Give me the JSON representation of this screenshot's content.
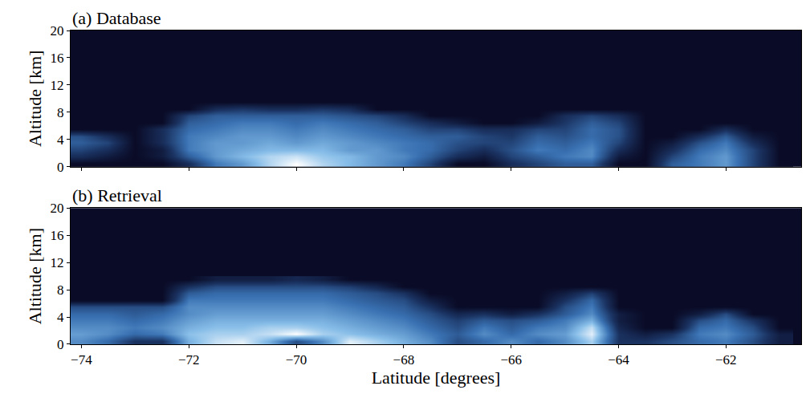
{
  "chart_data": [
    {
      "type": "heatmap",
      "title": "(a) Database",
      "ylabel": "Altitude [km]",
      "tick_labels": "y",
      "x": [
        -74,
        -73.5,
        -73,
        -72.5,
        -72,
        -71.5,
        -71,
        -70.5,
        -70,
        -69.5,
        -69,
        -68.5,
        -68,
        -67.5,
        -67,
        -66.5,
        -66,
        -65.5,
        -65,
        -64.5,
        -64,
        -63.5,
        -63,
        -62.5,
        -62,
        -61.5,
        -61
      ],
      "y": [
        0.5,
        1.5,
        2.5,
        3.5,
        4.5,
        5.5,
        6.5,
        7.5,
        8.5,
        9.5
      ],
      "z": [
        [
          0,
          0,
          0,
          0,
          0.2,
          0.5,
          0.6,
          0.8,
          0.95,
          0.8,
          0.7,
          0.6,
          0.5,
          0.3,
          0,
          0,
          0.2,
          0.3,
          0.4,
          0.4,
          0,
          0,
          0.4,
          0.5,
          0.6,
          0.3,
          0
        ],
        [
          0.2,
          0.1,
          0,
          0.1,
          0.4,
          0.6,
          0.7,
          0.8,
          0.85,
          0.75,
          0.7,
          0.6,
          0.55,
          0.4,
          0.2,
          0.1,
          0.3,
          0.4,
          0.5,
          0.55,
          0.1,
          0,
          0.3,
          0.5,
          0.6,
          0.3,
          0
        ],
        [
          0.3,
          0.2,
          0,
          0.1,
          0.5,
          0.6,
          0.65,
          0.7,
          0.7,
          0.7,
          0.6,
          0.6,
          0.5,
          0.45,
          0.3,
          0.2,
          0.35,
          0.5,
          0.45,
          0.55,
          0.2,
          0,
          0.2,
          0.45,
          0.55,
          0.3,
          0
        ],
        [
          0.4,
          0.3,
          0,
          0.2,
          0.5,
          0.6,
          0.6,
          0.65,
          0.6,
          0.65,
          0.6,
          0.55,
          0.5,
          0.45,
          0.35,
          0.3,
          0.3,
          0.45,
          0.4,
          0.5,
          0.3,
          0,
          0.1,
          0.35,
          0.5,
          0.2,
          0
        ],
        [
          0.35,
          0.2,
          0,
          0.2,
          0.5,
          0.55,
          0.6,
          0.6,
          0.55,
          0.6,
          0.55,
          0.5,
          0.45,
          0.4,
          0.4,
          0.3,
          0.25,
          0.4,
          0.35,
          0.45,
          0.35,
          0,
          0,
          0.2,
          0.4,
          0.1,
          0
        ],
        [
          0,
          0,
          0,
          0.2,
          0.45,
          0.5,
          0.55,
          0.55,
          0.5,
          0.55,
          0.5,
          0.45,
          0.4,
          0.3,
          0.3,
          0.2,
          0.2,
          0.3,
          0.3,
          0.45,
          0.35,
          0,
          0,
          0,
          0.2,
          0,
          0
        ],
        [
          0,
          0,
          0,
          0,
          0.4,
          0.45,
          0.5,
          0.5,
          0.45,
          0.5,
          0.45,
          0.4,
          0.3,
          0.2,
          0.1,
          0,
          0,
          0.1,
          0.25,
          0.4,
          0.3,
          0,
          0,
          0,
          0,
          0,
          0
        ],
        [
          0,
          0,
          0,
          0,
          0.3,
          0.4,
          0.4,
          0.4,
          0.4,
          0.4,
          0.35,
          0.3,
          0.2,
          0,
          0,
          0,
          0,
          0,
          0.2,
          0.3,
          0.2,
          0,
          0,
          0,
          0,
          0,
          0
        ],
        [
          0,
          0,
          0,
          0,
          0,
          0.2,
          0.25,
          0.2,
          0.2,
          0.25,
          0.2,
          0,
          0,
          0,
          0,
          0,
          0,
          0,
          0,
          0,
          0,
          0,
          0,
          0,
          0,
          0,
          0
        ],
        [
          0,
          0,
          0,
          0,
          0,
          0,
          0,
          0,
          0,
          0,
          0,
          0,
          0,
          0,
          0,
          0,
          0,
          0,
          0,
          0,
          0,
          0,
          0,
          0,
          0,
          0,
          0
        ]
      ],
      "xlim": [
        -74.2,
        -60.6
      ],
      "xticks": [
        {
          "value": -74,
          "label": "−74"
        },
        {
          "value": -72,
          "label": "−72"
        },
        {
          "value": -70,
          "label": "−70"
        },
        {
          "value": -68,
          "label": "−68"
        },
        {
          "value": -66,
          "label": "−66"
        },
        {
          "value": -64,
          "label": "−64"
        },
        {
          "value": -62,
          "label": "−62"
        }
      ],
      "ylim": [
        0,
        20
      ],
      "yticks": [
        0,
        4,
        8,
        12,
        16,
        20
      ]
    },
    {
      "type": "heatmap",
      "title": "(b) Retrieval",
      "xlabel": "Latitude [degrees]",
      "ylabel": "Altitude [km]",
      "x": [
        -74,
        -73.5,
        -73,
        -72.5,
        -72,
        -71.5,
        -71,
        -70.5,
        -70,
        -69.5,
        -69,
        -68.5,
        -68,
        -67.5,
        -67,
        -66.5,
        -66,
        -65.5,
        -65,
        -64.5,
        -64,
        -63.5,
        -63,
        -62.5,
        -62,
        -61.5,
        -61
      ],
      "y": [
        0.5,
        1.5,
        2.5,
        3.5,
        4.5,
        5.5,
        6.5,
        7.5,
        8.5,
        9.5
      ],
      "z": [
        [
          0.5,
          0.4,
          0.2,
          0.2,
          0.6,
          0.75,
          0.8,
          0.6,
          0.3,
          0.5,
          0.8,
          0.7,
          0.6,
          0.5,
          0.3,
          0.4,
          0.5,
          0.4,
          0.5,
          0.7,
          0.2,
          0.2,
          0.3,
          0.4,
          0.45,
          0.3,
          0.1
        ],
        [
          0.55,
          0.5,
          0.4,
          0.45,
          0.65,
          0.7,
          0.7,
          0.75,
          0.85,
          0.7,
          0.65,
          0.6,
          0.55,
          0.45,
          0.35,
          0.5,
          0.4,
          0.5,
          0.55,
          0.8,
          0.2,
          0.1,
          0.2,
          0.45,
          0.5,
          0.35,
          0.1
        ],
        [
          0.5,
          0.5,
          0.45,
          0.5,
          0.6,
          0.65,
          0.65,
          0.7,
          0.7,
          0.65,
          0.6,
          0.55,
          0.5,
          0.4,
          0.3,
          0.45,
          0.35,
          0.45,
          0.5,
          0.75,
          0.15,
          0,
          0,
          0.4,
          0.45,
          0.3,
          0
        ],
        [
          0.45,
          0.45,
          0.4,
          0.45,
          0.55,
          0.6,
          0.6,
          0.6,
          0.6,
          0.6,
          0.55,
          0.5,
          0.45,
          0.35,
          0.25,
          0.35,
          0.3,
          0.35,
          0.45,
          0.6,
          0.1,
          0,
          0,
          0.3,
          0.4,
          0.2,
          0
        ],
        [
          0.4,
          0.4,
          0.35,
          0.4,
          0.5,
          0.55,
          0.55,
          0.55,
          0.55,
          0.55,
          0.5,
          0.45,
          0.4,
          0.3,
          0.15,
          0.2,
          0.1,
          0.2,
          0.35,
          0.5,
          0.1,
          0,
          0,
          0.1,
          0.3,
          0,
          0
        ],
        [
          0.3,
          0.3,
          0.3,
          0.3,
          0.5,
          0.5,
          0.5,
          0.5,
          0.5,
          0.5,
          0.45,
          0.4,
          0.35,
          0.2,
          0,
          0,
          0,
          0,
          0.3,
          0.45,
          0,
          0,
          0,
          0,
          0,
          0,
          0
        ],
        [
          0,
          0,
          0,
          0,
          0.45,
          0.45,
          0.45,
          0.45,
          0.45,
          0.45,
          0.4,
          0.35,
          0.3,
          0.1,
          0,
          0,
          0,
          0,
          0.2,
          0.4,
          0,
          0,
          0,
          0,
          0,
          0,
          0
        ],
        [
          0,
          0,
          0,
          0,
          0.35,
          0.4,
          0.4,
          0.4,
          0.4,
          0.4,
          0.35,
          0.3,
          0.2,
          0,
          0,
          0,
          0,
          0,
          0.1,
          0.25,
          0,
          0,
          0,
          0,
          0,
          0,
          0
        ],
        [
          0,
          0,
          0,
          0,
          0.2,
          0.3,
          0.3,
          0.3,
          0.3,
          0.3,
          0.25,
          0.15,
          0,
          0,
          0,
          0,
          0,
          0,
          0,
          0,
          0,
          0,
          0,
          0,
          0,
          0,
          0
        ],
        [
          0,
          0,
          0,
          0,
          0,
          0.1,
          0.1,
          0.1,
          0.15,
          0.1,
          0,
          0,
          0,
          0,
          0,
          0,
          0,
          0,
          0,
          0,
          0,
          0,
          0,
          0,
          0,
          0,
          0
        ]
      ],
      "xlim": [
        -74.2,
        -60.6
      ],
      "xticks": [
        {
          "value": -74,
          "label": "−74"
        },
        {
          "value": -72,
          "label": "−72"
        },
        {
          "value": -70,
          "label": "−70"
        },
        {
          "value": -68,
          "label": "−68"
        },
        {
          "value": -66,
          "label": "−66"
        },
        {
          "value": -64,
          "label": "−64"
        },
        {
          "value": -62,
          "label": "−62"
        }
      ],
      "ylim": [
        0,
        20
      ],
      "yticks": [
        0,
        4,
        8,
        12,
        16,
        20
      ]
    }
  ]
}
